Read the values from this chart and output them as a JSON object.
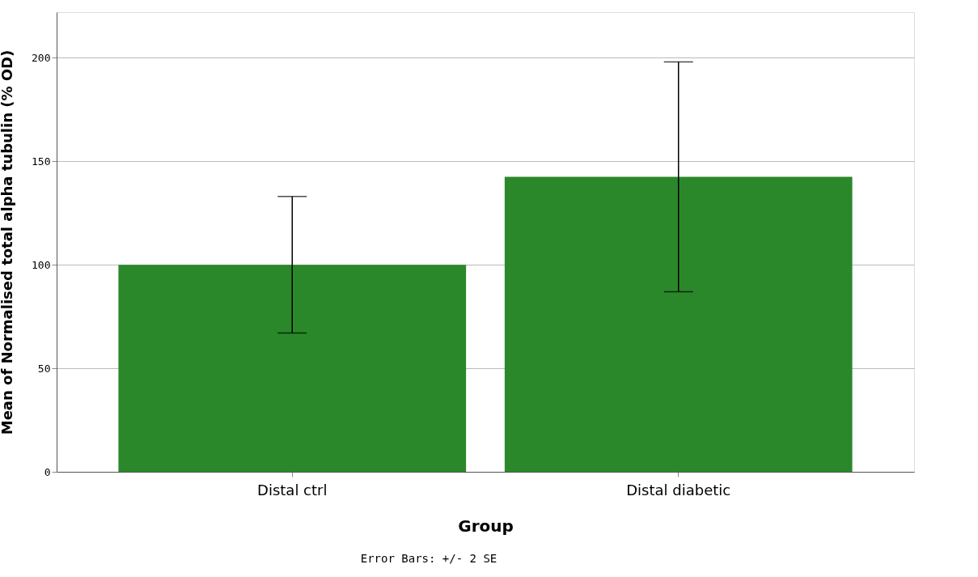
{
  "chart_data": {
    "type": "bar",
    "xlabel": "Group",
    "ylabel": "Mean of Normalised total alpha tubulin (% OD)",
    "categories": [
      "Distal ctrl",
      "Distal diabetic"
    ],
    "values": [
      100,
      142.5
    ],
    "errors": [
      [
        67,
        133
      ],
      [
        87,
        198
      ]
    ],
    "colors": [
      "#2a882a",
      "#2a882a"
    ],
    "ylim": [
      0,
      222
    ],
    "yticks": [
      0,
      50,
      100,
      150,
      200
    ],
    "grid": "y",
    "annotations": [
      "Error Bars: +/- 2 SE"
    ]
  }
}
